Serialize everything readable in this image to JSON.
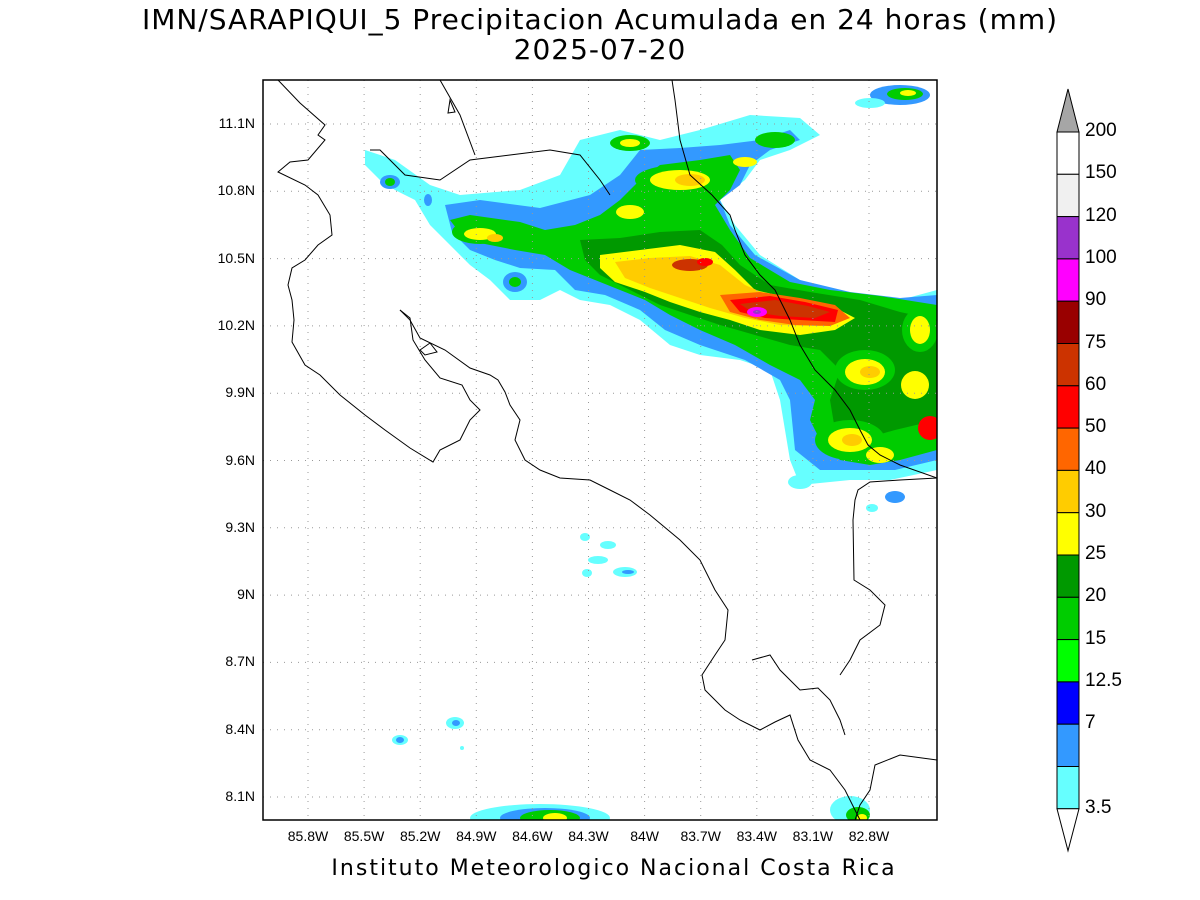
{
  "header": {
    "title_line1": "IMN/SARAPIQUI_5 Precipitacion Acumulada en 24 horas (mm)",
    "title_line2": "2025-07-20"
  },
  "footer": {
    "text": "Instituto Meteorologico Nacional Costa Rica"
  },
  "map": {
    "lat_labels": [
      "11.1N",
      "10.8N",
      "10.5N",
      "10.2N",
      "9.9N",
      "9.6N",
      "9.3N",
      "9N",
      "8.7N",
      "8.4N",
      "8.1N"
    ],
    "lon_labels": [
      "85.8W",
      "85.5W",
      "85.2W",
      "84.9W",
      "84.6W",
      "84.3W",
      "84W",
      "83.7W",
      "83.4W",
      "83.1W",
      "82.8W"
    ]
  },
  "colorbar": {
    "labels": [
      "200",
      "150",
      "120",
      "100",
      "90",
      "75",
      "60",
      "50",
      "40",
      "30",
      "25",
      "20",
      "15",
      "12.5",
      "7",
      "3.5"
    ],
    "colors": [
      "#ffffff",
      "#f0f0f0",
      "#9932cc",
      "#ff00ff",
      "#990000",
      "#cc3300",
      "#ff0000",
      "#ff6600",
      "#ffcc00",
      "#ffff00",
      "#009900",
      "#00cc00",
      "#00ff00",
      "#0000ff",
      "#3399ff",
      "#66ffff"
    ],
    "top_triangle_color": "#a6a6a6",
    "bottom_triangle_color": "#ffffff"
  }
}
